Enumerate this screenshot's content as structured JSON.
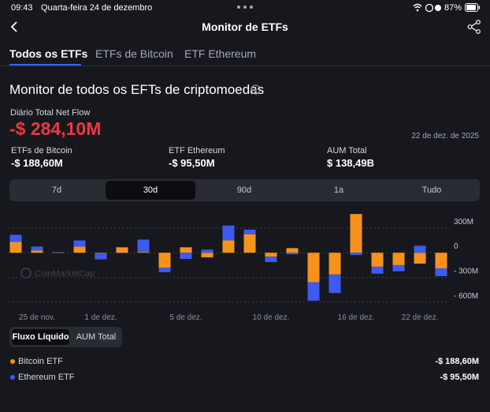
{
  "status_bar": {
    "time": "09:43",
    "date": "Quarta-feira 24 de dezembro",
    "battery": "87%"
  },
  "header": {
    "title": "Monitor de ETFs"
  },
  "tabs": [
    "Todos os ETFs",
    "ETFs de Bitcoin",
    "ETF Ethereum"
  ],
  "section_title": "Monitor de todos os EFTs de criptomoedas",
  "summary": {
    "label": "Diário Total Net Flow",
    "value": "-$ 284,10M",
    "date": "22 de dez. de 2025"
  },
  "stats": [
    {
      "label": "ETFs de Bitcoin",
      "value": "-$ 188,60M"
    },
    {
      "label": "ETF Ethereum",
      "value": "-$ 95,50M"
    },
    {
      "label": "AUM Total",
      "value": "$ 138,49B"
    }
  ],
  "ranges": [
    "7d",
    "30d",
    "90d",
    "1a",
    "Tudo"
  ],
  "chart_data": {
    "type": "stacked_bar",
    "watermark": "CoinMarketCap",
    "categories": [
      null,
      "25 de nov.",
      null,
      null,
      "1 de dez.",
      null,
      null,
      null,
      "5 de dez.",
      null,
      null,
      null,
      "10 de dez.",
      null,
      null,
      null,
      "16 de dez.",
      null,
      null,
      "22 de dez.",
      null
    ],
    "series": [
      {
        "name": "Bitcoin ETF",
        "color": "#f7931a",
        "values": [
          132,
          28,
          5,
          75,
          -5,
          66,
          10,
          -180,
          66,
          -56,
          150,
          225,
          -47,
          56,
          -357,
          -263,
          470,
          -169,
          -150,
          -132,
          -188.6
        ]
      },
      {
        "name": "Ethereum ETF",
        "color": "#3d5af1",
        "values": [
          85,
          47,
          -5,
          75,
          -75,
          -5,
          150,
          -56,
          -75,
          38,
          180,
          56,
          -66,
          -19,
          -225,
          -225,
          -28,
          -85,
          -75,
          85,
          -95.5
        ]
      }
    ],
    "ylim": [
      -620,
      500
    ],
    "yticks": [
      {
        "value": 300,
        "label": "300M"
      },
      0,
      {
        "value": -300,
        "label": "- 300M"
      },
      {
        "value": -600,
        "label": "- 600M"
      }
    ],
    "grid": true
  },
  "toggle": [
    "Fluxo Líquido",
    "AUM Total"
  ],
  "legend_values": [
    "-$ 188,60M",
    "-$ 95,50M"
  ]
}
